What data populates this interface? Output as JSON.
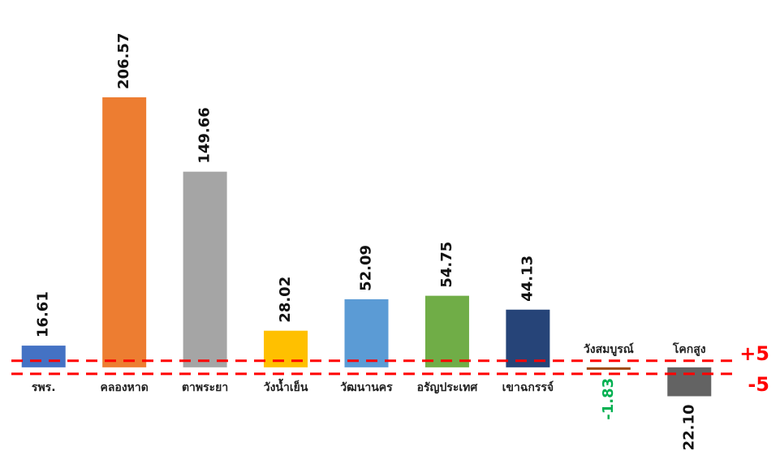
{
  "chart_data": {
    "type": "bar",
    "categories": [
      "รพร.",
      "คลองหาด",
      "ตาพระยา",
      "วังน้ำเย็น",
      "วัฒนานคร",
      "อรัญประเทศ",
      "เขาฉกรรจ์",
      "วังสมบูรณ์",
      "โคกสูง"
    ],
    "values": [
      16.61,
      206.57,
      149.66,
      28.02,
      52.09,
      54.75,
      44.13,
      -1.83,
      -22.1
    ],
    "value_labels": [
      "16.61",
      "206.57",
      "149.66",
      "28.02",
      "52.09",
      "54.75",
      "44.13",
      "-1.83",
      "-22.10"
    ],
    "colors": [
      "#4472c4",
      "#ed7d31",
      "#a5a5a5",
      "#ffc000",
      "#5b9bd5",
      "#70ad47",
      "#264478",
      "#9e480e",
      "#636363"
    ],
    "value_label_colors": [
      "#111111",
      "#111111",
      "#111111",
      "#111111",
      "#111111",
      "#111111",
      "#111111",
      "#00b050",
      "#111111"
    ],
    "ylim": [
      -64,
      281
    ],
    "reference_lines": [
      {
        "value": 5,
        "label": "+5"
      },
      {
        "value": -5,
        "label": "-5"
      }
    ],
    "reference_color": "#ff0000"
  }
}
